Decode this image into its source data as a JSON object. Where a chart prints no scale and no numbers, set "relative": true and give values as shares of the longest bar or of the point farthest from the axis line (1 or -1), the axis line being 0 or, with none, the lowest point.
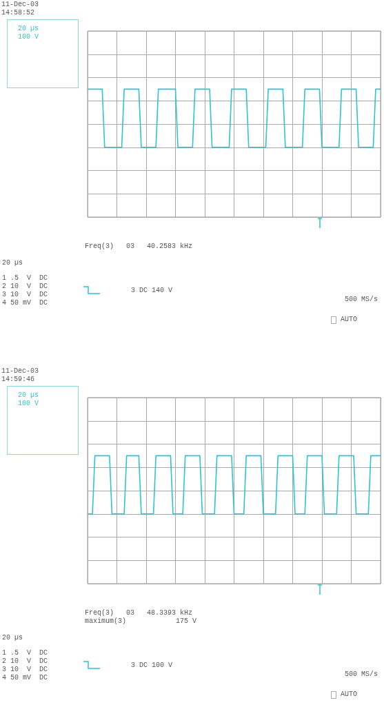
{
  "chart_data": [
    {
      "type": "line",
      "relative": true,
      "grid": true,
      "marker": "none",
      "categories": [
        null,
        null,
        null,
        null,
        null,
        null,
        null,
        null,
        null,
        null,
        null,
        null,
        null,
        null,
        null,
        null,
        null,
        null,
        null,
        null,
        null,
        null,
        null,
        null,
        null,
        null,
        null,
        null,
        null,
        null,
        null,
        null,
        null,
        null,
        null,
        null,
        null,
        null,
        null,
        null,
        null,
        null,
        null,
        null,
        null,
        null,
        null,
        null,
        null,
        null,
        null,
        null,
        null,
        null,
        null,
        null,
        null,
        null,
        null,
        null,
        null,
        null,
        null,
        null,
        null,
        null,
        null,
        null,
        null,
        null,
        null,
        null,
        null,
        null,
        null,
        null,
        null,
        null,
        null,
        null,
        null,
        null,
        null,
        null,
        null,
        null,
        null,
        null,
        null,
        null,
        null,
        null,
        null,
        null,
        null,
        null,
        null,
        null,
        null,
        null,
        null,
        null,
        null,
        null,
        null,
        null,
        null,
        null,
        null,
        null,
        null,
        null,
        null,
        null,
        null,
        null,
        null,
        null,
        null,
        null,
        null
      ],
      "series": [
        {
          "color": "#2ec4cc",
          "values": [
            1,
            1,
            1,
            1,
            1,
            1,
            1,
            0,
            0,
            0,
            0,
            0,
            0,
            0,
            0,
            1,
            1,
            1,
            1,
            1,
            1,
            1,
            0,
            0,
            0,
            0,
            0,
            0,
            0,
            1,
            1,
            1,
            1,
            1,
            1,
            1,
            1,
            0,
            0,
            0,
            0,
            0,
            0,
            0,
            1,
            1,
            1,
            1,
            1,
            1,
            1,
            0,
            0,
            0,
            0,
            0,
            0,
            0,
            0,
            1,
            1,
            1,
            1,
            1,
            1,
            1,
            0,
            0,
            0,
            0,
            0,
            0,
            0,
            0,
            1,
            1,
            1,
            1,
            1,
            1,
            1,
            0,
            0,
            0,
            0,
            0,
            0,
            0,
            0,
            1,
            1,
            1,
            1,
            1,
            1,
            1,
            0,
            0,
            0,
            0,
            0,
            0,
            0,
            0,
            1,
            1,
            1,
            1,
            1,
            1,
            1,
            0,
            0,
            0,
            0,
            0,
            0,
            0,
            1,
            1,
            1
          ]
        }
      ],
      "annotations": [
        "20 µs\n100 V",
        "Freq(3)   03   40.2583 kHz",
        "20 µs",
        "1 .5  V  DC\n2 10  V  DC\n3 10  V  DC\n4 50 mV  DC",
        "3 DC 140 V",
        "500 MS/s",
        "AUTO",
        "11-Dec-03\n14:58:52"
      ]
    },
    {
      "type": "line",
      "relative": true,
      "grid": true,
      "marker": "none",
      "categories": [
        null,
        null,
        null,
        null,
        null,
        null,
        null,
        null,
        null,
        null,
        null,
        null,
        null,
        null,
        null,
        null,
        null,
        null,
        null,
        null,
        null,
        null,
        null,
        null,
        null,
        null,
        null,
        null,
        null,
        null,
        null,
        null,
        null,
        null,
        null,
        null,
        null,
        null,
        null,
        null,
        null,
        null,
        null,
        null,
        null,
        null,
        null,
        null,
        null,
        null,
        null,
        null,
        null,
        null,
        null,
        null,
        null,
        null,
        null,
        null,
        null,
        null,
        null,
        null,
        null,
        null,
        null,
        null,
        null,
        null,
        null,
        null,
        null,
        null,
        null,
        null,
        null,
        null,
        null,
        null,
        null,
        null,
        null,
        null,
        null,
        null,
        null,
        null,
        null,
        null,
        null,
        null,
        null,
        null,
        null,
        null,
        null,
        null,
        null,
        null,
        null,
        null,
        null,
        null,
        null,
        null,
        null,
        null,
        null,
        null,
        null,
        null,
        null,
        null,
        null,
        null,
        null,
        null,
        null,
        null,
        null
      ],
      "series": [
        {
          "color": "#2ec4cc",
          "values": [
            0,
            0,
            0,
            1,
            1,
            1,
            1,
            1,
            1,
            1,
            0,
            0,
            0,
            0,
            0,
            0,
            1,
            1,
            1,
            1,
            1,
            1,
            0,
            0,
            0,
            0,
            0,
            0,
            1,
            1,
            1,
            1,
            1,
            1,
            1,
            0,
            0,
            0,
            0,
            0,
            1,
            1,
            1,
            1,
            1,
            1,
            1,
            0,
            0,
            0,
            0,
            0,
            0,
            1,
            1,
            1,
            1,
            1,
            1,
            1,
            0,
            0,
            0,
            0,
            0,
            1,
            1,
            1,
            1,
            1,
            1,
            1,
            0,
            0,
            0,
            0,
            0,
            0,
            1,
            1,
            1,
            1,
            1,
            1,
            1,
            0,
            0,
            0,
            0,
            0,
            1,
            1,
            1,
            1,
            1,
            1,
            1,
            0,
            0,
            0,
            0,
            0,
            0,
            1,
            1,
            1,
            1,
            1,
            1,
            1,
            0,
            0,
            0,
            0,
            0,
            0,
            1,
            1,
            1,
            1,
            1
          ]
        }
      ],
      "annotations": [
        "20 µs\n100 V",
        "Freq(3)   03   48.3393 kHz\nmaximum(3)            175 V",
        "20 µs",
        "1 .5  V  DC\n2 10  V  DC\n3 10  V  DC\n4 50 mV  DC",
        "3 DC 100 V",
        "500 MS/s",
        "AUTO",
        "11-Dec-03\n14:59:46"
      ]
    }
  ]
}
